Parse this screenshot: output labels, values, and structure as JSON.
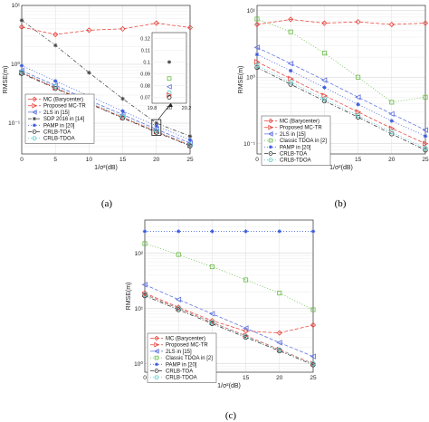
{
  "chart_data": [
    {
      "id": "a",
      "type": "line",
      "caption": "(a)",
      "xlabel": "1/σ²(dB)",
      "ylabel": "RMSE(m)",
      "ylog": true,
      "xlim": [
        0,
        25
      ],
      "ylim": [
        0.03,
        10
      ],
      "xticks": [
        0,
        5,
        10,
        15,
        20,
        25
      ],
      "yticks": [
        {
          "v": 0.1,
          "label": "10⁻¹"
        },
        {
          "v": 1,
          "label": "10⁰"
        },
        {
          "v": 10,
          "label": "10¹"
        }
      ],
      "x": [
        0,
        5,
        10,
        15,
        20,
        25
      ],
      "legend": {
        "placement": "bottom-left"
      },
      "series": [
        {
          "name": "MC (Barycenter)",
          "color": "#e8423a",
          "marker": "diamond",
          "dash": "4,2",
          "values": [
            4.3,
            3.2,
            3.8,
            4.0,
            5.0,
            4.2
          ]
        },
        {
          "name": "Proposed MC-TR",
          "color": "#e8423a",
          "marker": "triangle-right",
          "dash": "4,2",
          "values": [
            0.72,
            0.4,
            0.22,
            0.125,
            0.072,
            0.042
          ]
        },
        {
          "name": "2LS in [15]",
          "color": "#5b6fe0",
          "marker": "triangle-left",
          "dash": "4,2",
          "values": [
            0.78,
            0.44,
            0.245,
            0.14,
            0.079,
            0.046
          ]
        },
        {
          "name": "SDP 2016 in [14]",
          "color": "#444444",
          "marker": "asterisk",
          "dash": "4,2,1,2",
          "values": [
            5.6,
            2.1,
            0.72,
            0.26,
            0.1,
            0.06
          ]
        },
        {
          "name": "PAMP in [20]",
          "color": "#3355dd",
          "marker": "asterisk",
          "dash": "1,2",
          "values": [
            0.95,
            0.52,
            0.29,
            0.16,
            0.09,
            0.052
          ]
        },
        {
          "name": "CRLB-TOA",
          "color": "#333333",
          "marker": "circle",
          "dash": "4,2,1,2",
          "values": [
            0.7,
            0.39,
            0.215,
            0.122,
            0.07,
            0.041
          ]
        },
        {
          "name": "CRLB-TDOA",
          "color": "#55c8c8",
          "marker": "circle",
          "dash": "1,2",
          "values": [
            0.74,
            0.42,
            0.232,
            0.131,
            0.074,
            0.043
          ]
        }
      ],
      "inset": {
        "xticks": [
          "19.8",
          "20",
          "20.2"
        ],
        "yticks": [
          "0.12",
          "0.11",
          "0.1",
          "0.09",
          "0.08",
          "0.07"
        ],
        "points": [
          {
            "series": "SDP 2016 in [14]",
            "color": "#444444",
            "marker": "asterisk",
            "y": 0.1
          },
          {
            "series": "Classic TDOA in [2]",
            "color": "#66bb44",
            "marker": "square",
            "y": 0.086
          },
          {
            "series": "2LS in [15]",
            "color": "#5b6fe0",
            "marker": "triangle-left",
            "y": 0.079
          },
          {
            "series": "CRLB-TDOA",
            "color": "#55c8c8",
            "marker": "circle",
            "y": 0.074
          },
          {
            "series": "Proposed MC-TR",
            "color": "#e8423a",
            "marker": "triangle-right",
            "y": 0.072
          },
          {
            "series": "CRLB-TOA",
            "color": "#333333",
            "marker": "circle",
            "y": 0.07
          }
        ]
      }
    },
    {
      "id": "b",
      "type": "line",
      "caption": "(b)",
      "xlabel": "1/σ²(dB)",
      "ylabel": "RMSE(m)",
      "ylog": true,
      "xlim": [
        0,
        25
      ],
      "ylim": [
        0.07,
        12
      ],
      "xticks": [
        0,
        5,
        10,
        15,
        20,
        25
      ],
      "yticks": [
        {
          "v": 0.1,
          "label": "10⁻¹"
        },
        {
          "v": 1,
          "label": "10⁰"
        },
        {
          "v": 10,
          "label": "10¹"
        }
      ],
      "x": [
        0,
        5,
        10,
        15,
        20,
        25
      ],
      "legend": {
        "placement": "bottom-left"
      },
      "series": [
        {
          "name": "MC (Barycenter)",
          "color": "#e8423a",
          "marker": "diamond",
          "dash": "4,2",
          "values": [
            6.2,
            7.4,
            6.5,
            6.8,
            6.2,
            6.5
          ]
        },
        {
          "name": "Proposed MC-TR",
          "color": "#e8423a",
          "marker": "triangle-right",
          "dash": "4,2",
          "values": [
            1.7,
            0.95,
            0.53,
            0.3,
            0.17,
            0.1
          ]
        },
        {
          "name": "2LS in [15]",
          "color": "#5b6fe0",
          "marker": "triangle-left",
          "dash": "4,2",
          "values": [
            2.8,
            1.6,
            0.9,
            0.5,
            0.28,
            0.16
          ]
        },
        {
          "name": "Classic TDOA in [2]",
          "color": "#66bb44",
          "marker": "square",
          "dash": "1,2",
          "values": [
            7.5,
            4.8,
            2.3,
            1.0,
            0.42,
            0.5
          ]
        },
        {
          "name": "PAMP in [20]",
          "color": "#3355dd",
          "marker": "asterisk",
          "dash": "1,2",
          "values": [
            2.2,
            1.25,
            0.7,
            0.39,
            0.22,
            0.13
          ]
        },
        {
          "name": "CRLB-TOA",
          "color": "#333333",
          "marker": "circle",
          "dash": "4,2,1,2",
          "values": [
            1.4,
            0.78,
            0.44,
            0.25,
            0.14,
            0.08
          ]
        },
        {
          "name": "CRLB-TDOA",
          "color": "#55c8c8",
          "marker": "circle",
          "dash": "1,2",
          "values": [
            1.5,
            0.84,
            0.47,
            0.265,
            0.15,
            0.085
          ]
        }
      ]
    },
    {
      "id": "c",
      "type": "line",
      "caption": "(c)",
      "xlabel": "1/σ²(dB)",
      "ylabel": "RMSE(m)",
      "ylog": true,
      "xlim": [
        0,
        25
      ],
      "ylim": [
        0.7,
        400
      ],
      "xticks": [
        0,
        5,
        10,
        15,
        20,
        25
      ],
      "yticks": [
        {
          "v": 1,
          "label": "10⁰"
        },
        {
          "v": 10,
          "label": "10¹"
        },
        {
          "v": 100,
          "label": "10²"
        }
      ],
      "x": [
        0,
        5,
        10,
        15,
        20,
        25
      ],
      "legend": {
        "placement": "bottom-left"
      },
      "series": [
        {
          "name": "MC (Barycenter)",
          "color": "#e8423a",
          "marker": "diamond",
          "dash": "4,2",
          "values": [
            19,
            10.5,
            6.0,
            3.9,
            3.6,
            5.0
          ]
        },
        {
          "name": "Proposed MC-TR",
          "color": "#e8423a",
          "marker": "triangle-right",
          "dash": "4,2",
          "values": [
            18,
            10.0,
            5.6,
            3.2,
            1.8,
            1.0
          ]
        },
        {
          "name": "2LS in [15]",
          "color": "#5b6fe0",
          "marker": "triangle-left",
          "dash": "4,2",
          "values": [
            27,
            14.5,
            8.0,
            4.4,
            2.4,
            1.35
          ]
        },
        {
          "name": "Classic TDOA in [2]",
          "color": "#66bb44",
          "marker": "square",
          "dash": "1,2",
          "values": [
            150,
            95,
            57,
            33,
            19,
            9.5
          ]
        },
        {
          "name": "PAMP in [20]",
          "color": "#3355dd",
          "marker": "asterisk",
          "dash": "1,2",
          "values": [
            250,
            250,
            250,
            250,
            250,
            250
          ]
        },
        {
          "name": "CRLB-TOA",
          "color": "#333333",
          "marker": "circle",
          "dash": "4,2,1,2",
          "values": [
            17,
            9.5,
            5.3,
            3.0,
            1.7,
            0.95
          ]
        },
        {
          "name": "CRLB-TDOA",
          "color": "#55c8c8",
          "marker": "circle",
          "dash": "1,2",
          "values": [
            18,
            10.0,
            5.6,
            3.15,
            1.78,
            1.0
          ]
        }
      ]
    }
  ]
}
